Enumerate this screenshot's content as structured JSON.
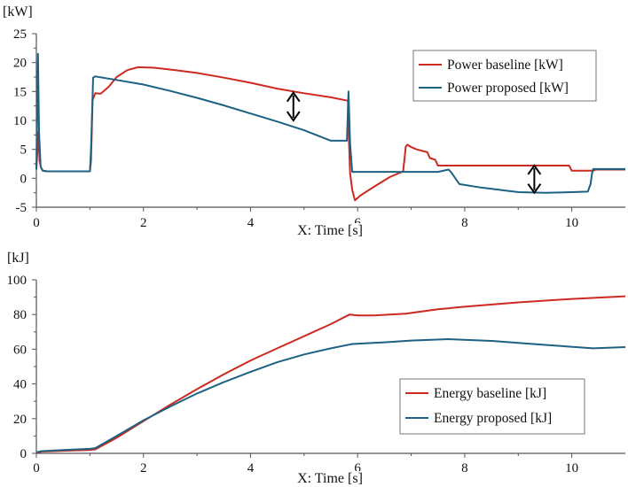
{
  "colors": {
    "baseline": "#cc2a20",
    "proposed": "#1d6183",
    "axis": "#555555",
    "text": "#111111"
  },
  "chart_data": [
    {
      "type": "line",
      "title": "",
      "unit_label": "[kW]",
      "xlabel": "X: Time [s]",
      "xlim": [
        0,
        11
      ],
      "ylim": [
        -5,
        25
      ],
      "xticks": [
        {
          "value": 0,
          "label": "0"
        },
        {
          "value": 2,
          "label": "2"
        },
        {
          "value": 4,
          "label": "4"
        },
        {
          "value": 6,
          "label": "6"
        },
        {
          "value": 8,
          "label": "8"
        },
        {
          "value": 10,
          "label": "10"
        }
      ],
      "yticks": [
        {
          "value": -5,
          "label": "-5"
        },
        {
          "value": 0,
          "label": "0"
        },
        {
          "value": 5,
          "label": "5"
        },
        {
          "value": 10,
          "label": "10"
        },
        {
          "value": 15,
          "label": "15"
        },
        {
          "value": 20,
          "label": "20"
        },
        {
          "value": 25,
          "label": "25"
        }
      ],
      "legend_position": "top-right",
      "series": [
        {
          "name": "Power baseline [kW]",
          "color_key": "baseline",
          "x": [
            0,
            0.04,
            0.06,
            0.09,
            0.12,
            0.2,
            1.0,
            1.02,
            1.05,
            1.1,
            1.2,
            1.35,
            1.5,
            1.7,
            1.9,
            2.2,
            2.6,
            3.0,
            3.5,
            4.0,
            4.5,
            5.0,
            5.5,
            5.82,
            5.84,
            5.86,
            5.9,
            5.95,
            6.05,
            6.3,
            6.6,
            6.85,
            6.9,
            6.93,
            7.0,
            7.1,
            7.3,
            7.35,
            7.45,
            7.5,
            7.6,
            8.0,
            9.0,
            9.95,
            10.0,
            10.05,
            10.4,
            10.45,
            11.0
          ],
          "y": [
            1.5,
            8.0,
            3.0,
            1.8,
            1.3,
            1.2,
            1.2,
            3.0,
            13.5,
            14.7,
            14.6,
            15.8,
            17.5,
            18.7,
            19.2,
            19.1,
            18.7,
            18.2,
            17.4,
            16.5,
            15.5,
            14.7,
            14.0,
            13.4,
            6.0,
            0.8,
            -2.0,
            -3.8,
            -3.0,
            -1.5,
            0.2,
            1.2,
            5.5,
            5.8,
            5.4,
            5.0,
            4.5,
            3.5,
            3.2,
            2.2,
            2.2,
            2.2,
            2.2,
            2.2,
            1.3,
            1.3,
            1.3,
            1.5,
            1.5
          ]
        },
        {
          "name": "Power proposed [kW]",
          "color_key": "proposed",
          "x": [
            0,
            0.03,
            0.05,
            0.08,
            0.12,
            0.2,
            1.0,
            1.02,
            1.06,
            1.1,
            1.5,
            2.0,
            2.5,
            3.0,
            3.5,
            4.0,
            4.5,
            5.0,
            5.5,
            5.8,
            5.83,
            5.86,
            5.9,
            6.2,
            7.0,
            7.5,
            7.7,
            7.75,
            7.9,
            8.3,
            9.0,
            9.5,
            10.0,
            10.3,
            10.35,
            10.38,
            10.4,
            11.0
          ],
          "y": [
            1.5,
            21.5,
            8.0,
            2.0,
            1.3,
            1.2,
            1.2,
            5.0,
            17.4,
            17.6,
            17.0,
            16.2,
            15.1,
            13.9,
            12.6,
            11.2,
            9.8,
            8.3,
            6.5,
            6.5,
            15.0,
            6.0,
            1.1,
            1.1,
            1.1,
            1.1,
            1.5,
            1.0,
            -1.0,
            -1.6,
            -2.4,
            -2.5,
            -2.4,
            -2.3,
            -1.0,
            1.0,
            1.6,
            1.6
          ]
        }
      ],
      "annotations": [
        {
          "type": "double-arrow",
          "x": 4.8,
          "y_from": 10.0,
          "y_to": 14.8
        },
        {
          "type": "double-arrow",
          "x": 9.3,
          "y_from": -2.5,
          "y_to": 2.2
        }
      ]
    },
    {
      "type": "line",
      "title": "",
      "unit_label": "[kJ]",
      "xlabel": "X: Time [s]",
      "xlim": [
        0,
        11
      ],
      "ylim": [
        0,
        100
      ],
      "xticks": [
        {
          "value": 0,
          "label": "0"
        },
        {
          "value": 2,
          "label": "2"
        },
        {
          "value": 4,
          "label": "4"
        },
        {
          "value": 6,
          "label": "6"
        },
        {
          "value": 8,
          "label": "8"
        },
        {
          "value": 10,
          "label": "10"
        }
      ],
      "yticks": [
        {
          "value": 0,
          "label": "0"
        },
        {
          "value": 20,
          "label": "20"
        },
        {
          "value": 40,
          "label": "40"
        },
        {
          "value": 60,
          "label": "60"
        },
        {
          "value": 80,
          "label": "80"
        },
        {
          "value": 100,
          "label": "100"
        }
      ],
      "legend_position": "bottom-right",
      "series": [
        {
          "name": "Energy baseline [kJ]",
          "color_key": "baseline",
          "x": [
            0,
            0.1,
            0.5,
            1.0,
            1.1,
            1.5,
            2.0,
            2.5,
            3.0,
            3.5,
            4.0,
            4.5,
            5.0,
            5.5,
            5.85,
            6.0,
            6.3,
            6.9,
            7.5,
            8.0,
            9.0,
            10.0,
            11.0
          ],
          "y": [
            0.3,
            1.0,
            1.5,
            2.0,
            2.3,
            9.0,
            18.5,
            28.0,
            37.0,
            45.5,
            53.5,
            60.5,
            67.5,
            74.5,
            80.0,
            79.5,
            79.5,
            80.5,
            83.0,
            84.5,
            87.0,
            89.0,
            90.5
          ]
        },
        {
          "name": "Energy proposed [kJ]",
          "color_key": "proposed",
          "x": [
            0,
            0.1,
            0.5,
            1.0,
            1.1,
            1.5,
            2.0,
            2.5,
            3.0,
            3.5,
            4.0,
            4.5,
            5.0,
            5.5,
            5.9,
            6.5,
            7.0,
            7.7,
            8.5,
            9.5,
            10.4,
            11.0
          ],
          "y": [
            0.6,
            1.3,
            1.9,
            2.6,
            3.0,
            10.0,
            19.0,
            27.0,
            34.5,
            41.0,
            47.0,
            52.5,
            57.0,
            60.5,
            63.0,
            64.0,
            65.0,
            65.8,
            64.8,
            62.5,
            60.5,
            61.2
          ]
        }
      ],
      "annotations": []
    }
  ]
}
